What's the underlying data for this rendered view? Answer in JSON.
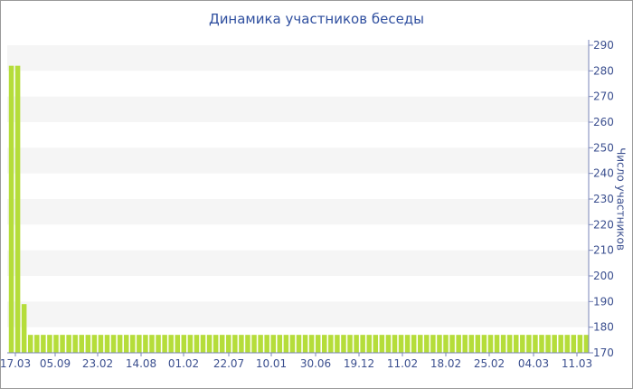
{
  "chart_data": {
    "type": "bar",
    "title": "Динамика участников беседы",
    "xlabel": "",
    "ylabel": "Число участников",
    "ylim": [
      170,
      290
    ],
    "ytick_step": 10,
    "y_axis_side": "right",
    "grid": "alternating horizontal bands",
    "bar_color": "#b5dd3a",
    "band_color": "#f5f5f5",
    "x_tick_labels": [
      "17.03",
      "05.09",
      "23.02",
      "14.08",
      "01.02",
      "22.07",
      "10.01",
      "30.06",
      "19.12",
      "11.02",
      "18.02",
      "25.02",
      "04.03",
      "11.03"
    ],
    "values": [
      282,
      282,
      189,
      177,
      177,
      177,
      177,
      177,
      177,
      177,
      177,
      177,
      177,
      177,
      177,
      177,
      177,
      177,
      177,
      177,
      177,
      177,
      177,
      177,
      177,
      177,
      177,
      177,
      177,
      177,
      177,
      177,
      177,
      177,
      177,
      177,
      177,
      177,
      177,
      177,
      177,
      177,
      177,
      177,
      177,
      177,
      177,
      177,
      177,
      177,
      177,
      177,
      177,
      177,
      177,
      177,
      177,
      177,
      177,
      177,
      177,
      177,
      177,
      177,
      177,
      177,
      177,
      177,
      177,
      177,
      177,
      177,
      177,
      177,
      177,
      177,
      177,
      177,
      177,
      177,
      177,
      177,
      177,
      177,
      177,
      177,
      177,
      177,
      177,
      177,
      177
    ]
  }
}
